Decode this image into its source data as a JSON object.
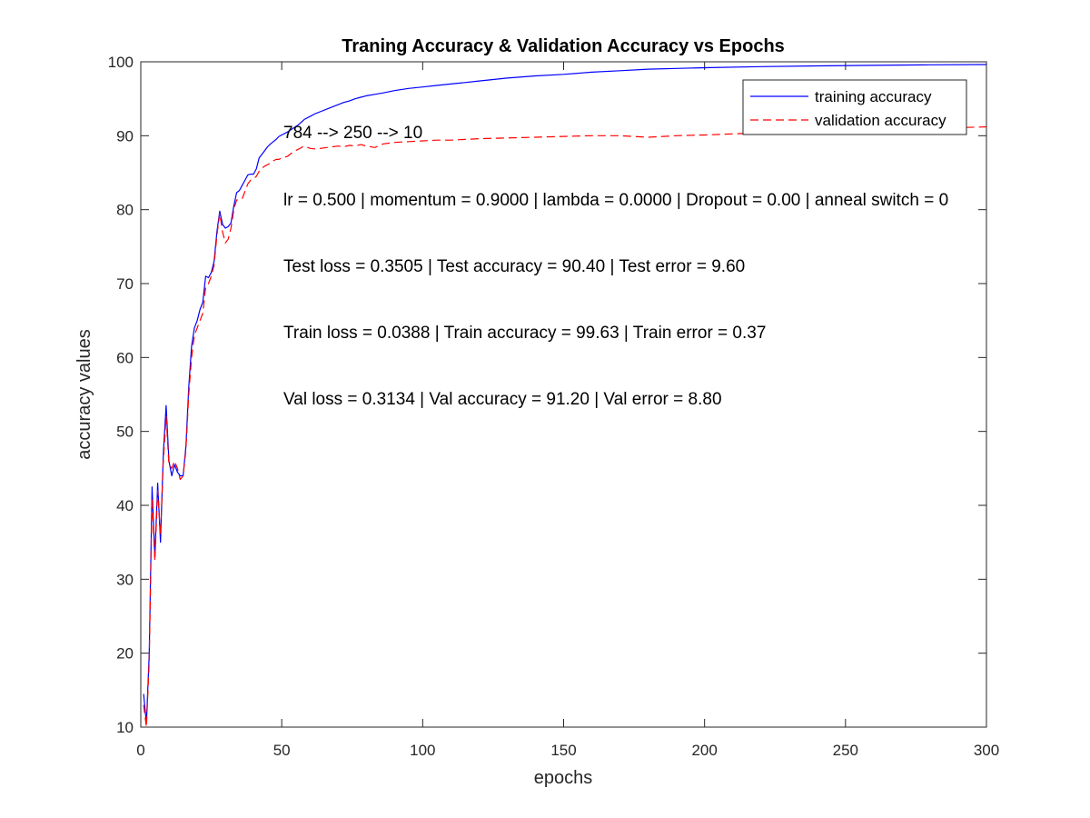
{
  "chart_data": {
    "type": "line",
    "title": "Traning Accuracy & Validation Accuracy vs Epochs",
    "xlabel": "epochs",
    "ylabel": "accuracy values",
    "xlim": [
      0,
      300
    ],
    "ylim": [
      10,
      100
    ],
    "xticks": [
      0,
      50,
      100,
      150,
      200,
      250,
      300
    ],
    "yticks": [
      10,
      20,
      30,
      40,
      50,
      60,
      70,
      80,
      90,
      100
    ],
    "grid": false,
    "legend_position": "top-right",
    "series": [
      {
        "name": "training accuracy",
        "color": "#0000ff",
        "style": "solid",
        "x": [
          1,
          2,
          3,
          4,
          5,
          6,
          7,
          8,
          9,
          10,
          11,
          12,
          13,
          14,
          15,
          16,
          17,
          18,
          19,
          20,
          21,
          22,
          23,
          24,
          25,
          26,
          27,
          28,
          29,
          30,
          31,
          32,
          33,
          34,
          35,
          36,
          37,
          38,
          39,
          40,
          41,
          42,
          43,
          44,
          45,
          46,
          47,
          48,
          49,
          50,
          52,
          54,
          56,
          58,
          60,
          62,
          64,
          66,
          68,
          70,
          72,
          74,
          76,
          78,
          80,
          83,
          86,
          90,
          95,
          100,
          105,
          110,
          115,
          120,
          130,
          140,
          150,
          160,
          170,
          180,
          190,
          200,
          220,
          240,
          260,
          280,
          300
        ],
        "values": [
          14.5,
          10.5,
          20,
          42.5,
          33,
          43,
          35,
          47,
          53.5,
          46,
          44,
          45.5,
          44.5,
          44,
          44,
          48,
          56,
          61.5,
          64,
          65,
          66.5,
          67.5,
          71,
          70.8,
          71.5,
          73,
          77,
          79.8,
          78,
          77.5,
          77.7,
          78.2,
          80.5,
          82.3,
          82.6,
          83.3,
          84,
          84.7,
          84.8,
          84.8,
          85.5,
          87,
          87.5,
          88,
          88.5,
          88.9,
          89.2,
          89.5,
          89.9,
          90.1,
          90.5,
          91,
          91.5,
          92.2,
          92.6,
          93,
          93.3,
          93.6,
          93.9,
          94.2,
          94.5,
          94.7,
          95,
          95.2,
          95.4,
          95.6,
          95.8,
          96.1,
          96.4,
          96.6,
          96.8,
          97,
          97.2,
          97.4,
          97.8,
          98.1,
          98.3,
          98.6,
          98.8,
          99,
          99.1,
          99.2,
          99.35,
          99.45,
          99.52,
          99.6,
          99.63
        ]
      },
      {
        "name": "validation accuracy",
        "color": "#ff0000",
        "style": "dashed",
        "x": [
          1,
          2,
          3,
          4,
          5,
          6,
          7,
          8,
          9,
          10,
          11,
          12,
          13,
          14,
          15,
          16,
          17,
          18,
          19,
          20,
          21,
          22,
          23,
          24,
          25,
          26,
          27,
          28,
          29,
          30,
          31,
          32,
          33,
          34,
          35,
          36,
          37,
          38,
          39,
          40,
          41,
          42,
          43,
          44,
          45,
          46,
          47,
          48,
          49,
          50,
          52,
          54,
          56,
          58,
          60,
          62,
          64,
          66,
          68,
          70,
          72,
          74,
          76,
          78,
          80,
          83,
          86,
          90,
          95,
          100,
          105,
          110,
          115,
          120,
          130,
          140,
          150,
          160,
          170,
          180,
          190,
          200,
          220,
          240,
          260,
          280,
          300
        ],
        "values": [
          13,
          10,
          19,
          41,
          32.5,
          42,
          36,
          46,
          52,
          45.5,
          45,
          46,
          45,
          43.5,
          44,
          47.5,
          55,
          60,
          63,
          64,
          65,
          66,
          69.5,
          70,
          71,
          72.5,
          76.5,
          79.5,
          77,
          75.5,
          76,
          77.5,
          80,
          81.3,
          81.4,
          81.5,
          82.5,
          83.5,
          84,
          84.2,
          84.5,
          85.2,
          85.6,
          85.9,
          86.1,
          86.3,
          86.6,
          86.8,
          86.8,
          87,
          87.2,
          87.8,
          88.2,
          88.6,
          88.3,
          88.2,
          88.3,
          88.4,
          88.5,
          88.6,
          88.5,
          88.7,
          88.6,
          88.8,
          88.6,
          88.4,
          88.9,
          89.1,
          89.2,
          89.3,
          89.4,
          89.4,
          89.5,
          89.6,
          89.7,
          89.8,
          89.9,
          90,
          90,
          89.8,
          90,
          90.1,
          90.4,
          90.6,
          90.8,
          91,
          91.2
        ]
      }
    ],
    "annotations": [
      "784 --> 250 --> 10",
      "lr = 0.500 | momentum = 0.9000 | lambda = 0.0000 | Dropout = 0.00 | anneal switch = 0",
      "Test loss = 0.3505 | Test accuracy = 90.40 | Test error = 9.60",
      "Train loss = 0.0388 | Train accuracy = 99.63 | Train error = 0.37",
      "Val loss = 0.3134 | Val accuracy = 91.20 | Val error = 8.80"
    ]
  }
}
